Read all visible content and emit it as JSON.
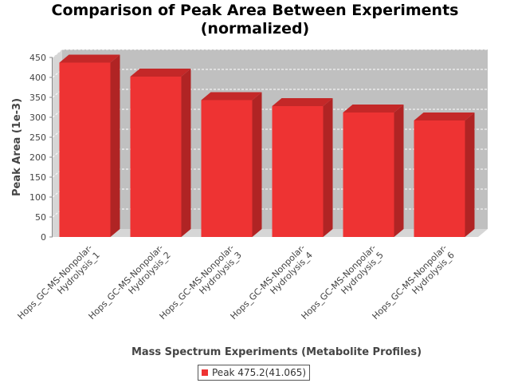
{
  "chart_data": {
    "type": "bar",
    "title_lines": [
      "Comparison of Peak Area Between Experiments",
      "(normalized)"
    ],
    "xlabel": "Mass Spectrum Experiments (Metabolite Profiles)",
    "ylabel": "Peak Area (1e-3)",
    "ylim": [
      0,
      450
    ],
    "yticks": [
      0,
      50,
      100,
      150,
      200,
      250,
      300,
      350,
      400,
      450
    ],
    "categories": [
      "Hops_GC-MS-Nonpolar-Hydrolysis_1",
      "Hops_GC-MS-Nonpolar-Hydrolysis_2",
      "Hops_GC-MS-Nonpolar-Hydrolysis_3",
      "Hops_GC-MS-Nonpolar-Hydrolysis_4",
      "Hops_GC-MS-Nonpolar-Hydrolysis_5",
      "Hops_GC-MS-Nonpolar-Hydrolysis_6"
    ],
    "category_label_lines": [
      [
        "Hops_GC-MS-Nonpolar-",
        "Hydrolysis_1"
      ],
      [
        "Hops_GC-MS-Nonpolar-",
        "Hydrolysis_2"
      ],
      [
        "Hops_GC-MS-Nonpolar-",
        "Hydrolysis_3"
      ],
      [
        "Hops_GC-MS-Nonpolar-",
        "Hydrolysis_4"
      ],
      [
        "Hops_GC-MS-Nonpolar-",
        "Hydrolysis_5"
      ],
      [
        "Hops_GC-MS-Nonpolar-",
        "Hydrolysis_6"
      ]
    ],
    "series": [
      {
        "name": "Peak 475.2(41.065)",
        "values": [
          437,
          402,
          343,
          328,
          312,
          292
        ]
      }
    ],
    "grid": true,
    "legend_position": "bottom-center",
    "colors": {
      "bar_front": "#ee3333",
      "bar_top": "#c42828",
      "bar_side": "#b02424",
      "plot_back": "#c0c0c0",
      "plot_wall": "#d6d6d6",
      "gridline": "#ffffff",
      "axis_text": "#444444"
    }
  }
}
